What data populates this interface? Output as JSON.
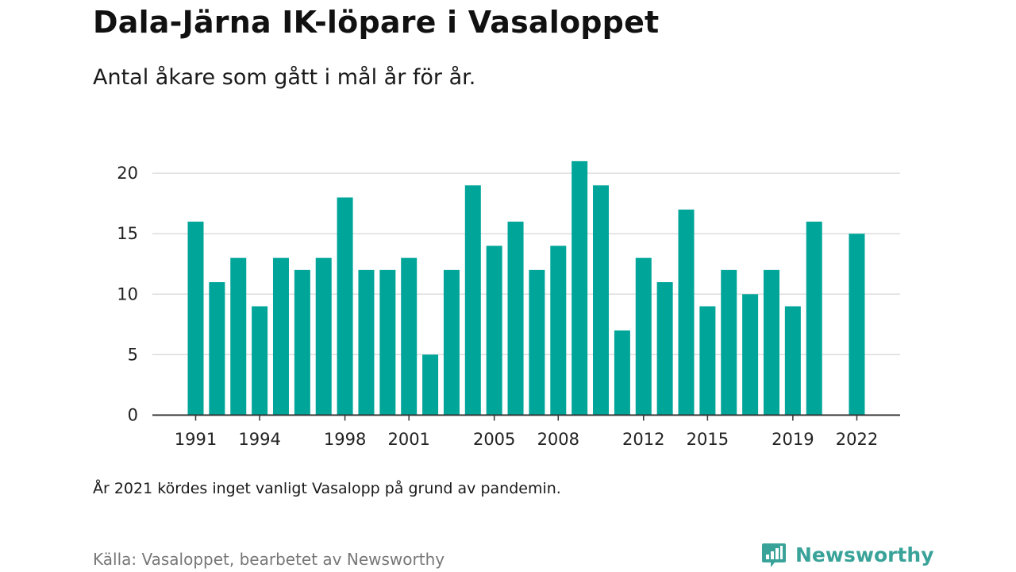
{
  "title": "Dala-Järna IK-löpare i Vasaloppet",
  "subtitle": "Antal åkare som gått i mål år för år.",
  "note": "År 2021 kördes inget vanligt Vasalopp på grund av pandemin.",
  "source": "Källa: Vasaloppet, bearbetet av Newsworthy",
  "logo_text": "Newsworthy",
  "colors": {
    "bar": "#00a59a",
    "grid": "#dddddd",
    "axis": "#333333",
    "logo": "#3aa399"
  },
  "chart_data": {
    "type": "bar",
    "title": "Dala-Järna IK-löpare i Vasaloppet",
    "subtitle": "Antal åkare som gått i mål år för år.",
    "xlabel": "",
    "ylabel": "",
    "ylim": [
      0,
      22
    ],
    "yticks": [
      0,
      5,
      10,
      15,
      20
    ],
    "xtick_labels": [
      "1991",
      "1994",
      "1998",
      "2001",
      "2005",
      "2008",
      "2012",
      "2015",
      "2019",
      "2022"
    ],
    "grid": true,
    "categories": [
      1991,
      1992,
      1993,
      1994,
      1995,
      1996,
      1997,
      1998,
      1999,
      2000,
      2001,
      2002,
      2003,
      2004,
      2005,
      2006,
      2007,
      2008,
      2009,
      2010,
      2011,
      2012,
      2013,
      2014,
      2015,
      2016,
      2017,
      2018,
      2019,
      2020,
      2021,
      2022
    ],
    "values": [
      16,
      11,
      13,
      9,
      13,
      12,
      13,
      18,
      12,
      12,
      13,
      5,
      12,
      19,
      14,
      16,
      12,
      14,
      21,
      19,
      7,
      13,
      11,
      17,
      9,
      12,
      10,
      12,
      9,
      16,
      null,
      15
    ]
  }
}
